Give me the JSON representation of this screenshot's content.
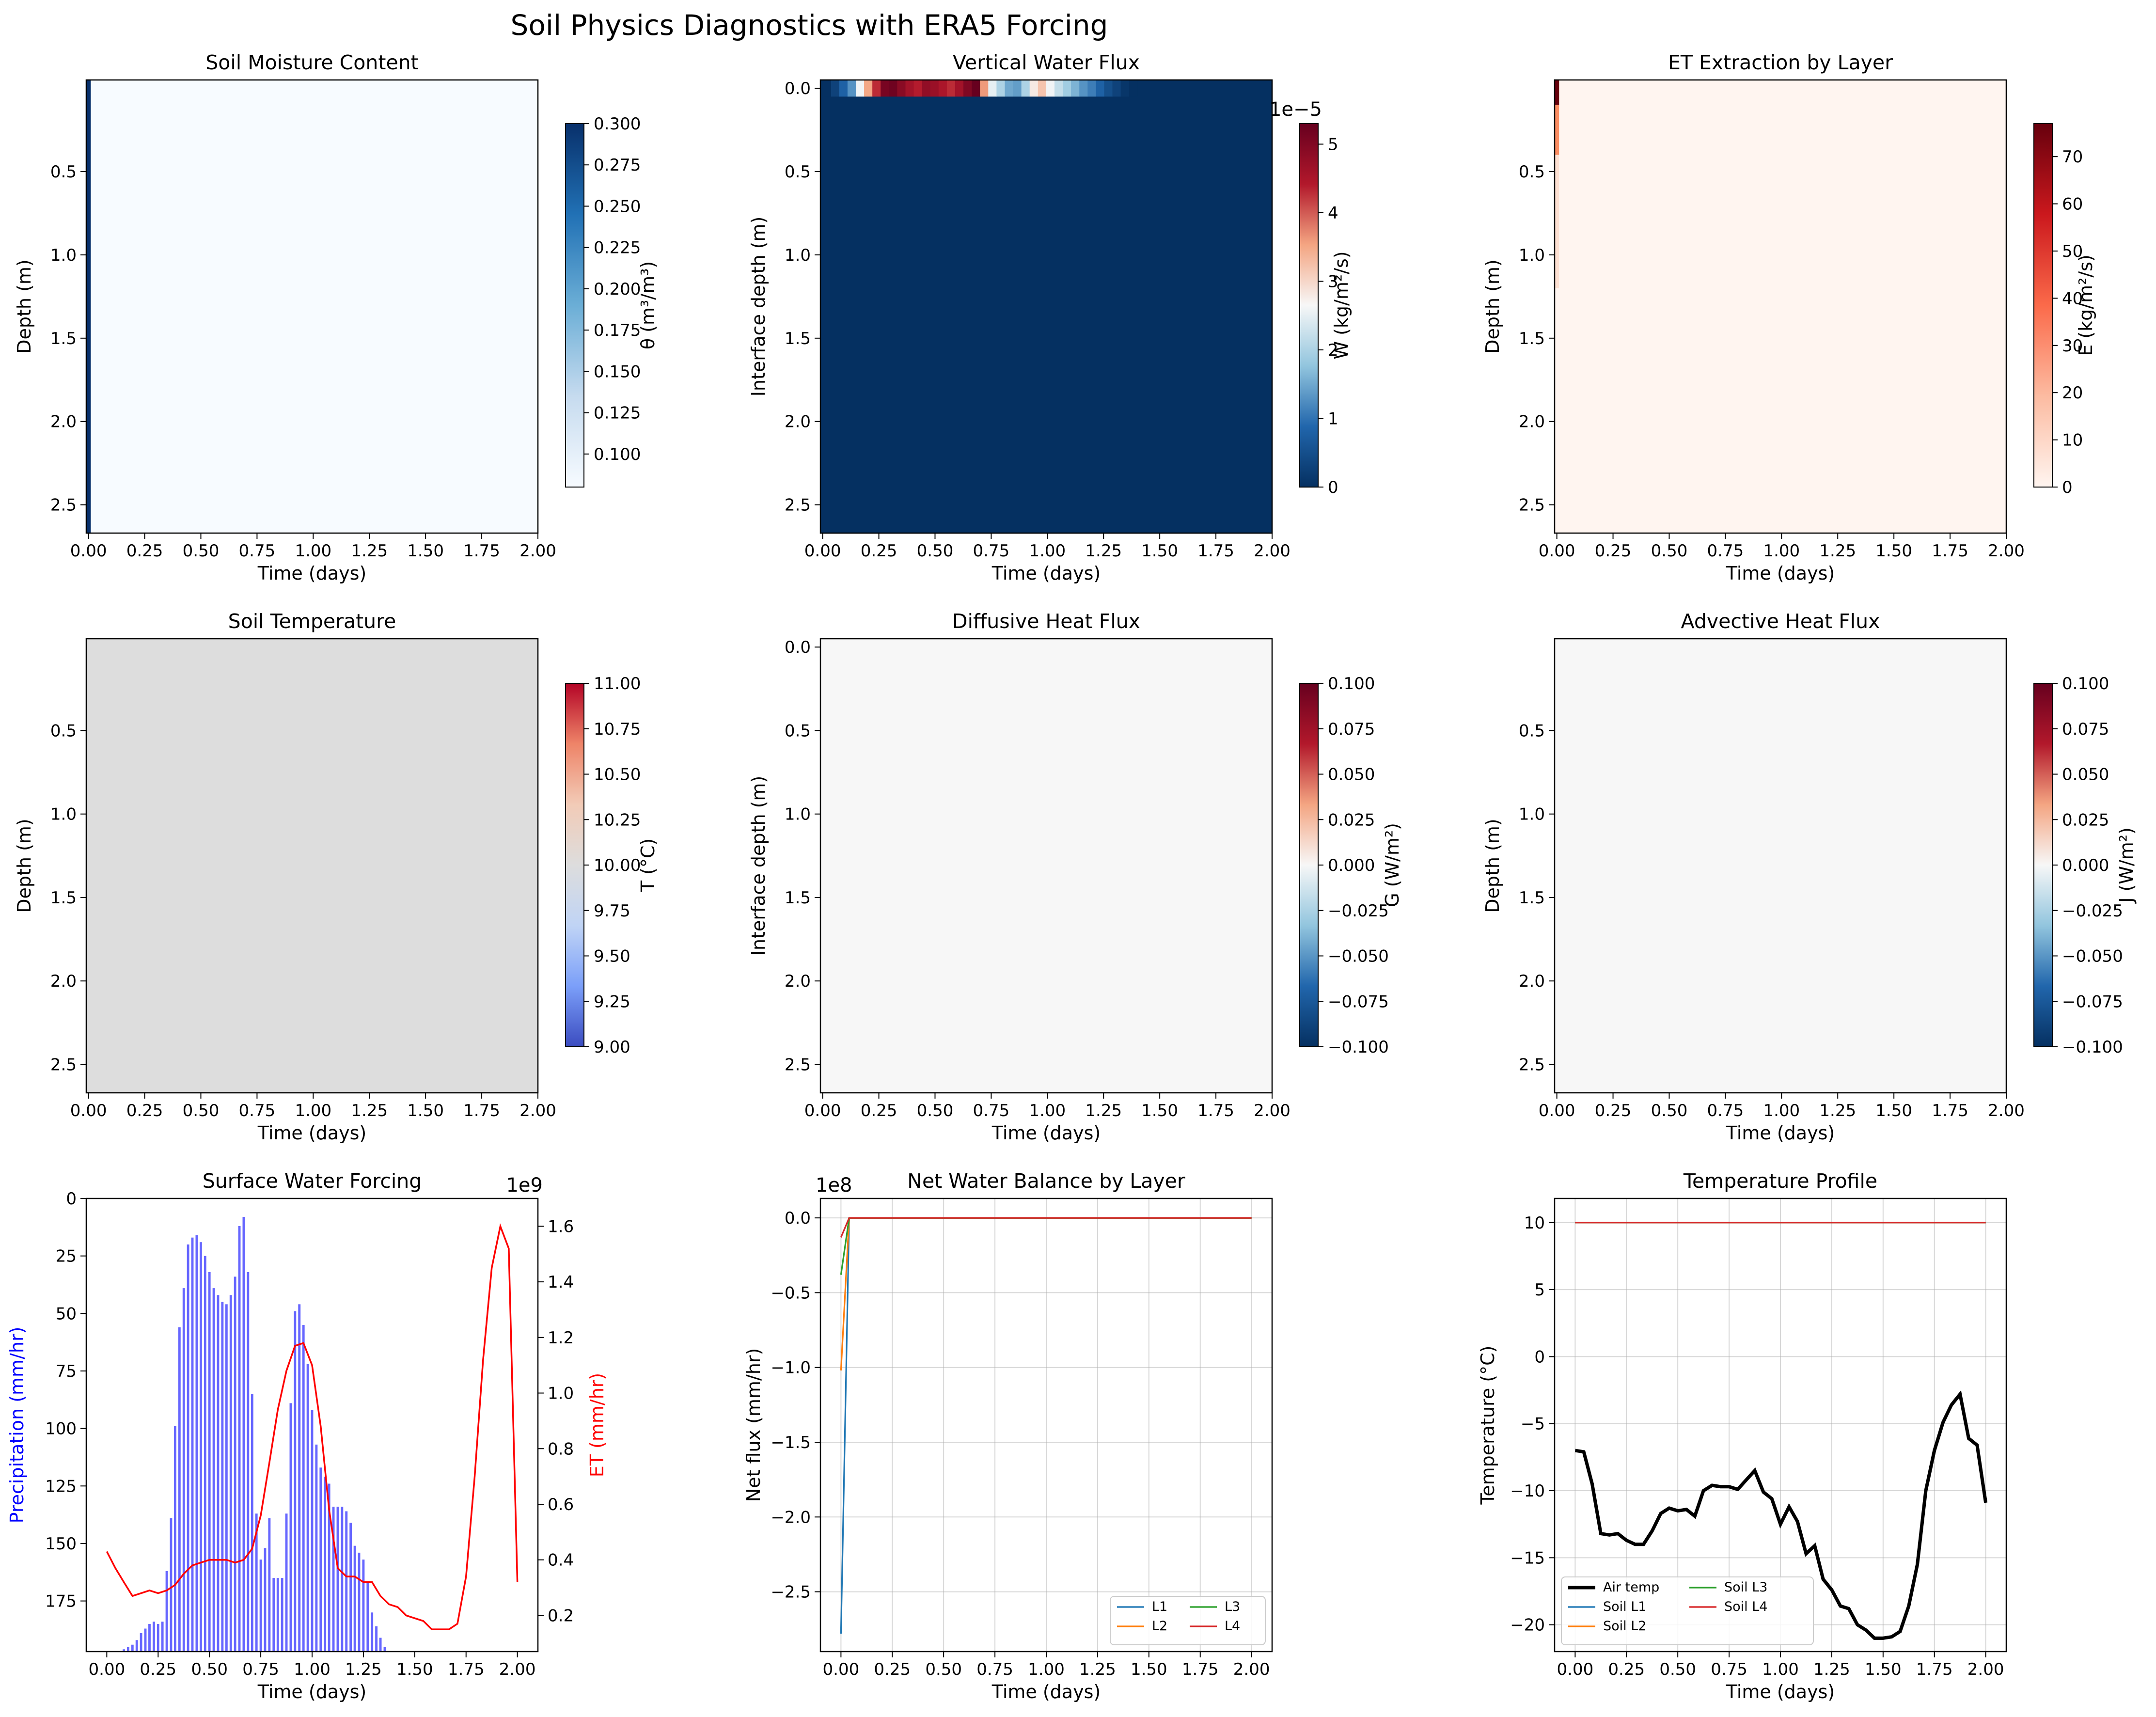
{
  "figure": {
    "suptitle": "Soil Physics Diagnostics with ERA5 Forcing"
  },
  "chart_data": [
    {
      "id": "moisture",
      "type": "heatmap",
      "title": "Soil Moisture Content",
      "xlabel": "Time (days)",
      "ylabel": "Depth (m)",
      "xlim": [
        -0.01,
        2.0
      ],
      "ylim": [
        2.67,
        -0.05
      ],
      "xticks": [
        "0.00",
        "0.25",
        "0.50",
        "0.75",
        "1.00",
        "1.25",
        "1.50",
        "1.75",
        "2.00"
      ],
      "yticks": [
        "0.5",
        "1.0",
        "1.5",
        "2.0",
        "2.5"
      ],
      "colormap": "Blues",
      "background": "#f7fbff",
      "cells": [
        {
          "x0": -0.01,
          "x1": 0.01,
          "y0": -0.05,
          "y1": 2.67,
          "color": "#08306b"
        }
      ],
      "colorbar": {
        "label": "θ (m³/m³)",
        "range": [
          0.08,
          0.3
        ],
        "ticks": [
          "0.100",
          "0.125",
          "0.150",
          "0.175",
          "0.200",
          "0.225",
          "0.250",
          "0.275",
          "0.300"
        ],
        "tick_values": [
          0.1,
          0.125,
          0.15,
          0.175,
          0.2,
          0.225,
          0.25,
          0.275,
          0.3
        ],
        "colors": [
          "#f7fbff",
          "#c6dbef",
          "#6baed6",
          "#2171b5",
          "#08306b"
        ]
      }
    },
    {
      "id": "water_flux",
      "type": "heatmap",
      "title": "Vertical Water Flux",
      "xlabel": "Time (days)",
      "ylabel": "Interface depth (m)",
      "xlim": [
        -0.01,
        2.0
      ],
      "ylim": [
        2.67,
        -0.05
      ],
      "xticks": [
        "0.00",
        "0.25",
        "0.50",
        "0.75",
        "1.00",
        "1.25",
        "1.50",
        "1.75",
        "2.00"
      ],
      "yticks": [
        "0.0",
        "0.5",
        "1.0",
        "1.5",
        "2.0",
        "2.5"
      ],
      "colormap": "RdBu_r",
      "background": "#053061",
      "surface_row": {
        "y0": -0.05,
        "y1": 0.05,
        "values": [
          0,
          0.3,
          0.8,
          1.3,
          2.6,
          3.5,
          4.3,
          5.1,
          5.2,
          4.9,
          4.6,
          4.4,
          4.8,
          4.7,
          4.5,
          4.3,
          4.6,
          5.0,
          5.3,
          3.6,
          2.5,
          2.0,
          1.5,
          1.4,
          2.0,
          2.8,
          3.2,
          2.6,
          2.2,
          1.9,
          1.6,
          1.3,
          1.1,
          0.8,
          0.5,
          0.3,
          0.1,
          0
        ]
      },
      "colorbar": {
        "label": "W (kg/m²/s)",
        "range": [
          0,
          5.3
        ],
        "exponent": "1e−5",
        "ticks": [
          "0",
          "1",
          "2",
          "3",
          "4",
          "5"
        ],
        "tick_values": [
          0,
          1,
          2,
          3,
          4,
          5
        ],
        "colors": [
          "#053061",
          "#2166ac",
          "#92c5de",
          "#f7f7f7",
          "#f4a582",
          "#b2182b",
          "#67001f"
        ]
      }
    },
    {
      "id": "et_extraction",
      "type": "heatmap",
      "title": "ET Extraction by Layer",
      "xlabel": "Time (days)",
      "ylabel": "Depth (m)",
      "xlim": [
        -0.01,
        2.0
      ],
      "ylim": [
        2.67,
        -0.05
      ],
      "xticks": [
        "0.00",
        "0.25",
        "0.50",
        "0.75",
        "1.00",
        "1.25",
        "1.50",
        "1.75",
        "2.00"
      ],
      "yticks": [
        "0.5",
        "1.0",
        "1.5",
        "2.0",
        "2.5"
      ],
      "colormap": "Reds",
      "background": "#fff5f0",
      "cells": [
        {
          "x0": -0.01,
          "x1": 0.01,
          "y0": -0.05,
          "y1": 0.1,
          "color": "#67000d"
        },
        {
          "x0": -0.01,
          "x1": 0.01,
          "y0": 0.1,
          "y1": 0.4,
          "color": "#fb8d62"
        },
        {
          "x0": -0.01,
          "x1": 0.01,
          "y0": 0.4,
          "y1": 1.2,
          "color": "#fde0d2"
        }
      ],
      "colorbar": {
        "label": "E (kg/m²/s)",
        "range": [
          0,
          77
        ],
        "ticks": [
          "0",
          "10",
          "20",
          "30",
          "40",
          "50",
          "60",
          "70"
        ],
        "tick_values": [
          0,
          10,
          20,
          30,
          40,
          50,
          60,
          70
        ],
        "colors": [
          "#fff5f0",
          "#fcbba1",
          "#fb6a4a",
          "#cb181d",
          "#67000d"
        ]
      }
    },
    {
      "id": "soil_temp",
      "type": "heatmap",
      "title": "Soil Temperature",
      "xlabel": "Time (days)",
      "ylabel": "Depth (m)",
      "xlim": [
        -0.01,
        2.0
      ],
      "ylim": [
        2.67,
        -0.05
      ],
      "xticks": [
        "0.00",
        "0.25",
        "0.50",
        "0.75",
        "1.00",
        "1.25",
        "1.50",
        "1.75",
        "2.00"
      ],
      "yticks": [
        "0.5",
        "1.0",
        "1.5",
        "2.0",
        "2.5"
      ],
      "colormap": "coolwarm",
      "background": "#dddddd",
      "colorbar": {
        "label": "T (°C)",
        "range": [
          9,
          11
        ],
        "ticks": [
          "9.00",
          "9.25",
          "9.50",
          "9.75",
          "10.00",
          "10.25",
          "10.50",
          "10.75",
          "11.00"
        ],
        "tick_values": [
          9,
          9.25,
          9.5,
          9.75,
          10,
          10.25,
          10.5,
          10.75,
          11
        ],
        "colors": [
          "#3b4cc0",
          "#7b9ff9",
          "#c0d4f5",
          "#dddddd",
          "#f2cbb7",
          "#ee8468",
          "#b40426"
        ]
      }
    },
    {
      "id": "diffusive_heat",
      "type": "heatmap",
      "title": "Diffusive Heat Flux",
      "xlabel": "Time (days)",
      "ylabel": "Interface depth (m)",
      "xlim": [
        -0.01,
        2.0
      ],
      "ylim": [
        2.67,
        -0.05
      ],
      "xticks": [
        "0.00",
        "0.25",
        "0.50",
        "0.75",
        "1.00",
        "1.25",
        "1.50",
        "1.75",
        "2.00"
      ],
      "yticks": [
        "0.0",
        "0.5",
        "1.0",
        "1.5",
        "2.0",
        "2.5"
      ],
      "colormap": "RdBu_r",
      "background": "#f7f7f7",
      "colorbar": {
        "label": "G (W/m²)",
        "range": [
          -0.1,
          0.1
        ],
        "ticks": [
          "−0.100",
          "−0.075",
          "−0.050",
          "−0.025",
          "0.000",
          "0.025",
          "0.050",
          "0.075",
          "0.100"
        ],
        "tick_values": [
          -0.1,
          -0.075,
          -0.05,
          -0.025,
          0,
          0.025,
          0.05,
          0.075,
          0.1
        ],
        "colors": [
          "#053061",
          "#2166ac",
          "#92c5de",
          "#f7f7f7",
          "#f4a582",
          "#b2182b",
          "#67001f"
        ]
      }
    },
    {
      "id": "advective_heat",
      "type": "heatmap",
      "title": "Advective Heat Flux",
      "xlabel": "Time (days)",
      "ylabel": "Depth (m)",
      "xlim": [
        -0.01,
        2.0
      ],
      "ylim": [
        2.67,
        -0.05
      ],
      "xticks": [
        "0.00",
        "0.25",
        "0.50",
        "0.75",
        "1.00",
        "1.25",
        "1.50",
        "1.75",
        "2.00"
      ],
      "yticks": [
        "0.5",
        "1.0",
        "1.5",
        "2.0",
        "2.5"
      ],
      "colormap": "RdBu_r",
      "background": "#f7f7f7",
      "colorbar": {
        "label": "J (W/m²)",
        "range": [
          -0.1,
          0.1
        ],
        "ticks": [
          "−0.100",
          "−0.075",
          "−0.050",
          "−0.025",
          "0.000",
          "0.025",
          "0.050",
          "0.075",
          "0.100"
        ],
        "tick_values": [
          -0.1,
          -0.075,
          -0.05,
          -0.025,
          0,
          0.025,
          0.05,
          0.075,
          0.1
        ],
        "colors": [
          "#053061",
          "#2166ac",
          "#92c5de",
          "#f7f7f7",
          "#f4a582",
          "#b2182b",
          "#67001f"
        ]
      }
    },
    {
      "id": "surface_forcing",
      "type": "bar",
      "title": "Surface Water Forcing",
      "xlabel": "Time (days)",
      "ylabel": "Precipitation (mm/hr)",
      "ylabel_color": "#0000ff",
      "y2label": "ET (mm/hr)",
      "y2label_color": "#ff0000",
      "y2_exponent": "1e9",
      "xlim": [
        -0.1,
        2.1
      ],
      "ylim": [
        0,
        197
      ],
      "y2lim": [
        0.07,
        1.7
      ],
      "xticks": [
        "0.00",
        "0.25",
        "0.50",
        "0.75",
        "1.00",
        "1.25",
        "1.50",
        "1.75",
        "2.00"
      ],
      "xtick_values": [
        0,
        0.25,
        0.5,
        0.75,
        1,
        1.25,
        1.5,
        1.75,
        2
      ],
      "yticks": [
        "0",
        "25",
        "50",
        "75",
        "100",
        "125",
        "150",
        "175"
      ],
      "ytick_values": [
        0,
        25,
        50,
        75,
        100,
        125,
        150,
        175
      ],
      "y2ticks": [
        "0.2",
        "0.4",
        "0.6",
        "0.8",
        "1.0",
        "1.2",
        "1.4",
        "1.6"
      ],
      "y2tick_values": [
        0.2,
        0.4,
        0.6,
        0.8,
        1.0,
        1.2,
        1.4,
        1.6
      ],
      "precip_bars": {
        "x": [
          0.083,
          0.104,
          0.125,
          0.146,
          0.167,
          0.188,
          0.208,
          0.229,
          0.25,
          0.271,
          0.292,
          0.313,
          0.333,
          0.354,
          0.375,
          0.396,
          0.417,
          0.438,
          0.458,
          0.479,
          0.5,
          0.521,
          0.542,
          0.563,
          0.583,
          0.604,
          0.625,
          0.646,
          0.667,
          0.688,
          0.708,
          0.729,
          0.75,
          0.771,
          0.792,
          0.813,
          0.833,
          0.854,
          0.875,
          0.896,
          0.917,
          0.938,
          0.958,
          0.979,
          1.0,
          1.021,
          1.042,
          1.063,
          1.083,
          1.104,
          1.125,
          1.146,
          1.167,
          1.188,
          1.208,
          1.229,
          1.25,
          1.271,
          1.292,
          1.313,
          1.333,
          1.354,
          1.375,
          1.396,
          1.417
        ],
        "values": [
          1,
          2,
          3,
          5,
          8,
          10,
          12,
          13,
          12,
          13,
          35,
          58,
          98,
          141,
          158,
          177,
          180,
          181,
          178,
          172,
          165,
          158,
          155,
          152,
          151,
          155,
          163,
          185,
          189,
          165,
          112,
          60,
          40,
          45,
          58,
          32,
          32,
          32,
          60,
          108,
          148,
          151,
          142,
          125,
          105,
          90,
          80,
          76,
          73,
          63,
          63,
          63,
          61,
          56,
          46,
          43,
          40,
          30,
          17,
          11,
          6,
          2,
          0,
          0,
          0
        ]
      },
      "et_line": {
        "x": [
          0.0,
          0.042,
          0.083,
          0.125,
          0.167,
          0.208,
          0.25,
          0.292,
          0.333,
          0.375,
          0.417,
          0.458,
          0.5,
          0.542,
          0.583,
          0.625,
          0.667,
          0.708,
          0.75,
          0.792,
          0.833,
          0.875,
          0.917,
          0.958,
          1.0,
          1.042,
          1.083,
          1.125,
          1.167,
          1.208,
          1.25,
          1.292,
          1.333,
          1.375,
          1.417,
          1.458,
          1.5,
          1.542,
          1.583,
          1.625,
          1.667,
          1.708,
          1.75,
          1.792,
          1.833,
          1.875,
          1.917,
          1.958,
          2.0
        ],
        "values": [
          0.43,
          0.37,
          0.32,
          0.27,
          0.28,
          0.29,
          0.28,
          0.29,
          0.31,
          0.35,
          0.38,
          0.39,
          0.4,
          0.4,
          0.4,
          0.39,
          0.4,
          0.44,
          0.56,
          0.75,
          0.94,
          1.08,
          1.17,
          1.18,
          1.1,
          0.88,
          0.58,
          0.37,
          0.34,
          0.34,
          0.32,
          0.32,
          0.27,
          0.24,
          0.23,
          0.2,
          0.19,
          0.18,
          0.15,
          0.15,
          0.15,
          0.17,
          0.34,
          0.7,
          1.12,
          1.45,
          1.6,
          1.52,
          0.32
        ]
      }
    },
    {
      "id": "net_water",
      "type": "line",
      "title": "Net Water Balance by Layer",
      "xlabel": "Time (days)",
      "ylabel": "Net flux (mm/hr)",
      "y_exponent": "1e8",
      "grid": true,
      "legend_position": "lower-right",
      "xlim": [
        -0.1,
        2.1
      ],
      "ylim": [
        -2.9,
        0.13
      ],
      "xticks": [
        "0.00",
        "0.25",
        "0.50",
        "0.75",
        "1.00",
        "1.25",
        "1.50",
        "1.75",
        "2.00"
      ],
      "xtick_values": [
        0,
        0.25,
        0.5,
        0.75,
        1,
        1.25,
        1.5,
        1.75,
        2
      ],
      "yticks": [
        "0.0",
        "−0.5",
        "−1.0",
        "−1.5",
        "−2.0",
        "−2.5"
      ],
      "ytick_values": [
        0,
        -0.5,
        -1,
        -1.5,
        -2,
        -2.5
      ],
      "series": [
        {
          "name": "L1",
          "color": "#1f77b4",
          "x": [
            0.0,
            0.04,
            2.0
          ],
          "values": [
            -2.78,
            0,
            0
          ]
        },
        {
          "name": "L2",
          "color": "#ff7f0e",
          "x": [
            0.0,
            0.04,
            2.0
          ],
          "values": [
            -1.02,
            0,
            0
          ]
        },
        {
          "name": "L3",
          "color": "#2ca02c",
          "x": [
            0.0,
            0.04,
            2.0
          ],
          "values": [
            -0.38,
            0,
            0
          ]
        },
        {
          "name": "L4",
          "color": "#d62728",
          "x": [
            0.0,
            0.04,
            2.0
          ],
          "values": [
            -0.13,
            0,
            0
          ]
        }
      ]
    },
    {
      "id": "temp_profile",
      "type": "line",
      "title": "Temperature Profile",
      "xlabel": "Time (days)",
      "ylabel": "Temperature (°C)",
      "grid": true,
      "legend_position": "lower-left",
      "xlim": [
        -0.1,
        2.1
      ],
      "ylim": [
        -22.0,
        11.8
      ],
      "xticks": [
        "0.00",
        "0.25",
        "0.50",
        "0.75",
        "1.00",
        "1.25",
        "1.50",
        "1.75",
        "2.00"
      ],
      "xtick_values": [
        0,
        0.25,
        0.5,
        0.75,
        1,
        1.25,
        1.5,
        1.75,
        2
      ],
      "yticks": [
        "10",
        "5",
        "0",
        "−5",
        "−10",
        "−15",
        "−20"
      ],
      "ytick_values": [
        10,
        5,
        0,
        -5,
        -10,
        -15,
        -20
      ],
      "series": [
        {
          "name": "Air temp",
          "color": "#000000",
          "width": 2.2,
          "x": [
            0.0,
            0.042,
            0.083,
            0.125,
            0.167,
            0.208,
            0.25,
            0.292,
            0.333,
            0.375,
            0.417,
            0.458,
            0.5,
            0.542,
            0.583,
            0.625,
            0.667,
            0.708,
            0.75,
            0.792,
            0.833,
            0.875,
            0.917,
            0.958,
            1.0,
            1.042,
            1.083,
            1.125,
            1.167,
            1.208,
            1.25,
            1.292,
            1.333,
            1.375,
            1.417,
            1.458,
            1.5,
            1.542,
            1.583,
            1.625,
            1.667,
            1.708,
            1.75,
            1.792,
            1.833,
            1.875,
            1.917,
            1.958,
            2.0
          ],
          "values": [
            -7.0,
            -7.1,
            -9.5,
            -13.2,
            -13.3,
            -13.2,
            -13.7,
            -14.0,
            -14.0,
            -13.0,
            -11.7,
            -11.3,
            -11.5,
            -11.4,
            -11.9,
            -10.0,
            -9.6,
            -9.7,
            -9.7,
            -9.9,
            -9.2,
            -8.5,
            -10.1,
            -10.6,
            -12.5,
            -11.2,
            -12.3,
            -14.7,
            -14.1,
            -16.6,
            -17.4,
            -18.6,
            -18.8,
            -20.0,
            -20.4,
            -21.0,
            -21.0,
            -20.9,
            -20.5,
            -18.6,
            -15.5,
            -10.0,
            -7.0,
            -4.9,
            -3.6,
            -2.8,
            -6.1,
            -6.6,
            -10.9
          ]
        },
        {
          "name": "Soil L1",
          "color": "#1f77b4",
          "x": [
            0.0,
            2.0
          ],
          "values": [
            10,
            10
          ]
        },
        {
          "name": "Soil L2",
          "color": "#ff7f0e",
          "x": [
            0.0,
            2.0
          ],
          "values": [
            10,
            10
          ]
        },
        {
          "name": "Soil L3",
          "color": "#2ca02c",
          "x": [
            0.0,
            2.0
          ],
          "values": [
            10,
            10
          ]
        },
        {
          "name": "Soil L4",
          "color": "#d62728",
          "x": [
            0.0,
            2.0
          ],
          "values": [
            10,
            10
          ]
        }
      ]
    }
  ]
}
